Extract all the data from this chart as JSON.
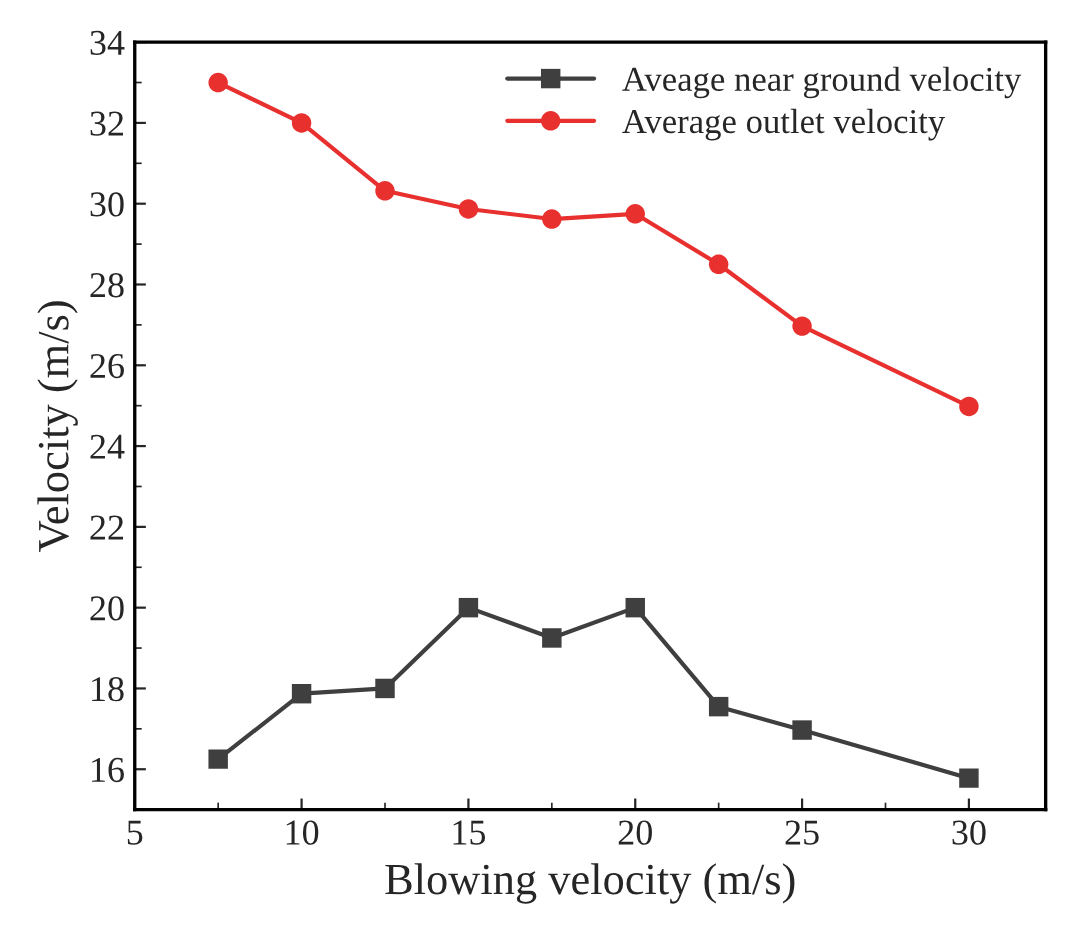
{
  "chart_data": {
    "type": "line",
    "xlabel": "Blowing velocity (m/s)",
    "ylabel": "Velocity (m/s)",
    "x": [
      7.5,
      10,
      12.5,
      15,
      17.5,
      20,
      22.5,
      25,
      30
    ],
    "series": [
      {
        "name": "Aveage near ground velocity",
        "color": "#3f3f3f",
        "marker": "square",
        "values": [
          16.25,
          17.87,
          18.0,
          20.0,
          19.25,
          20.0,
          17.55,
          16.97,
          15.78
        ]
      },
      {
        "name": "Average outlet velocity",
        "color": "#e8312f",
        "marker": "circle",
        "values": [
          33.0,
          32.0,
          30.32,
          29.87,
          29.62,
          29.75,
          28.5,
          26.97,
          24.98
        ]
      }
    ],
    "xlim": [
      5,
      32.3
    ],
    "xticks": [
      5,
      10,
      15,
      20,
      25,
      30
    ],
    "ylim": [
      15,
      34
    ],
    "yticks": [
      16,
      18,
      20,
      22,
      24,
      26,
      28,
      30,
      32,
      34
    ],
    "legend": "top right",
    "grid": false,
    "line_style": "solid"
  }
}
